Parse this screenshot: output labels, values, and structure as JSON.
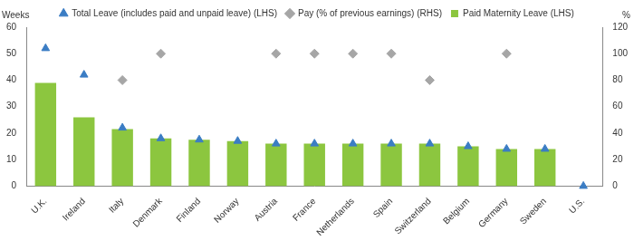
{
  "chart_data": {
    "type": "bar",
    "y_label": "Weeks",
    "y2_label": "%",
    "categories": [
      "U.K.",
      "Ireland",
      "Italy",
      "Denmark",
      "Finland",
      "Norway",
      "Austria",
      "France",
      "Netherlands",
      "Spain",
      "Switzerland",
      "Belgium",
      "Germany",
      "Sweden",
      "U.S."
    ],
    "series": [
      {
        "name": "Paid Maternity Leave (LHS)",
        "type": "bar",
        "color": "#8cc63f",
        "values": [
          39,
          26,
          21.5,
          18,
          17.5,
          17,
          16,
          16,
          16,
          16,
          16,
          15,
          14,
          14,
          0
        ]
      },
      {
        "name": "Total Leave (includes paid and unpaid leave) (LHS)",
        "type": "scatter",
        "marker": "triangle",
        "color": "#3b7dc4",
        "values": [
          52,
          42,
          22,
          18,
          17.5,
          17,
          16,
          16,
          16,
          16,
          16,
          15,
          14,
          14,
          0
        ]
      },
      {
        "name": "Pay (% of previous earnings) (RHS)",
        "type": "scatter",
        "marker": "diamond",
        "color": "#a6a6a6",
        "axis": "y2",
        "values": [
          null,
          null,
          80,
          100,
          null,
          null,
          100,
          100,
          100,
          100,
          80,
          null,
          100,
          null,
          null
        ]
      }
    ],
    "ylim": [
      0,
      60
    ],
    "yticks": [
      0,
      10,
      20,
      30,
      40,
      50,
      60
    ],
    "y2lim": [
      0,
      120
    ],
    "y2ticks": [
      0,
      20,
      40,
      60,
      80,
      100,
      120
    ],
    "grid": false,
    "legend": "top"
  }
}
